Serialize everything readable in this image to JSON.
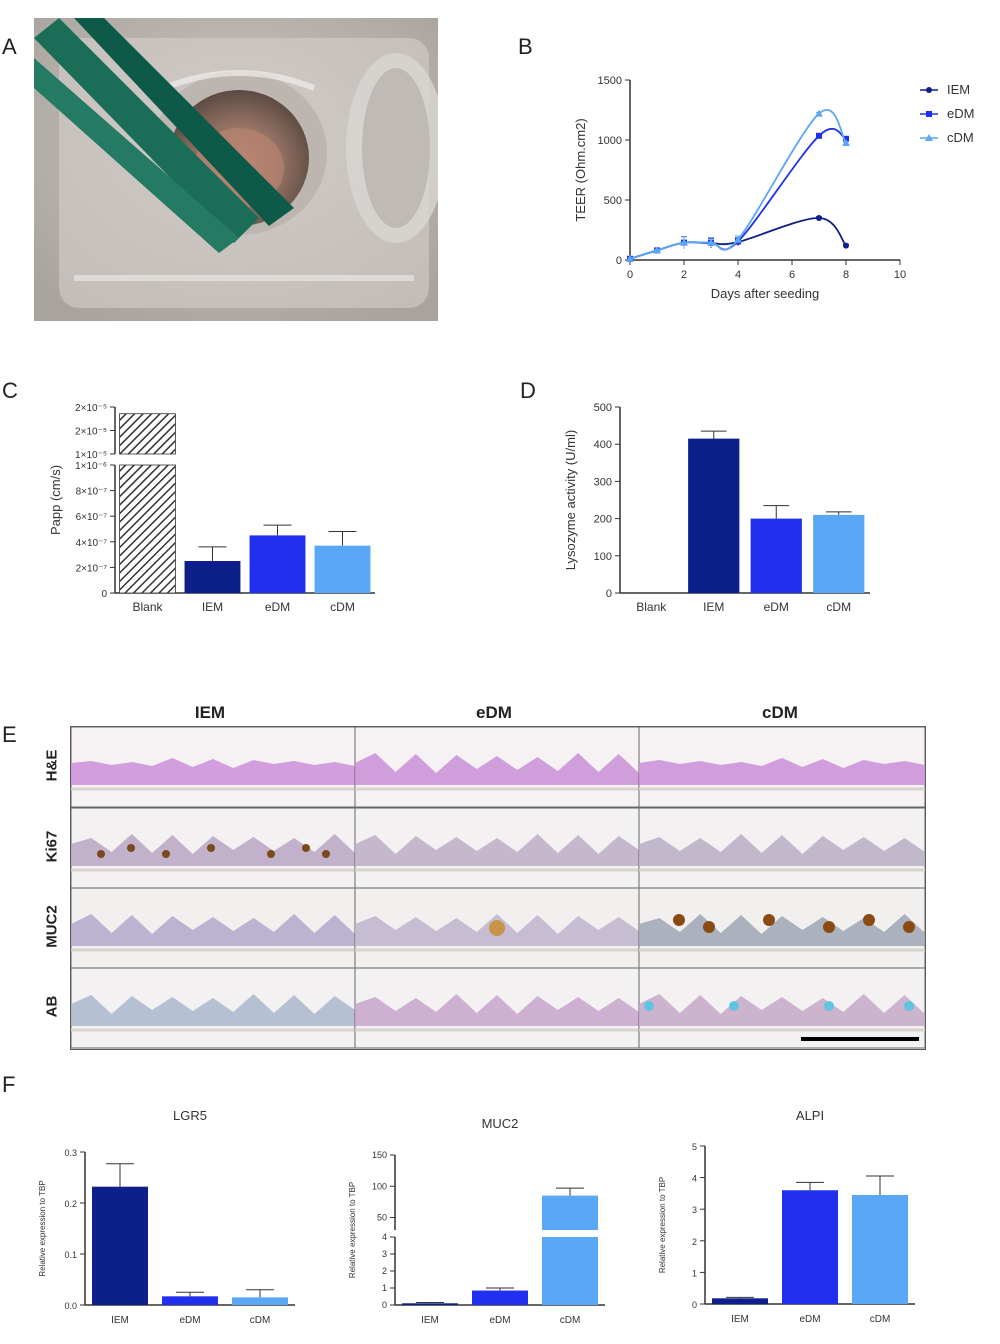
{
  "panels": {
    "a": "A",
    "b": "B",
    "c": "C",
    "d": "D",
    "e": "E",
    "f": "F"
  },
  "colors": {
    "iem": "#0c1f8a",
    "edm": "#2030ee",
    "cdm": "#5aa8f5",
    "blank_fill": "#777777"
  },
  "photo": {
    "description_icon": "transwell-photo-icon"
  },
  "histology": {
    "columns": [
      "IEM",
      "eDM",
      "cDM"
    ],
    "rows": [
      "H&E",
      "Ki67",
      "MUC2",
      "AB"
    ]
  },
  "chart_data": [
    {
      "id": "B",
      "type": "line",
      "xlabel": "Days after seeding",
      "ylabel": "TEER (Ohm.cm2)",
      "xlim": [
        0,
        10
      ],
      "ylim": [
        0,
        1500
      ],
      "xticks": [
        "0",
        "2",
        "4",
        "6",
        "8",
        "10"
      ],
      "yticks": [
        "0",
        "500",
        "1000",
        "1500"
      ],
      "series": [
        {
          "name": "IEM",
          "marker": "circle",
          "x": [
            0,
            1,
            2,
            3,
            4,
            7,
            8
          ],
          "y": [
            10,
            80,
            145,
            140,
            150,
            350,
            120
          ],
          "err": [
            0,
            10,
            50,
            40,
            30,
            10,
            10
          ]
        },
        {
          "name": "eDM",
          "marker": "square",
          "x": [
            0,
            1,
            2,
            3,
            4,
            7,
            8
          ],
          "y": [
            10,
            80,
            145,
            145,
            155,
            1035,
            1010
          ],
          "err": [
            0,
            10,
            50,
            40,
            30,
            10,
            10
          ]
        },
        {
          "name": "cDM",
          "marker": "triangle",
          "x": [
            0,
            1,
            2,
            3,
            4,
            7,
            8
          ],
          "y": [
            10,
            80,
            145,
            145,
            170,
            1220,
            975
          ],
          "err": [
            0,
            10,
            50,
            40,
            30,
            10,
            10
          ]
        }
      ]
    },
    {
      "id": "C",
      "type": "bar",
      "ylabel": "Papp  (cm/s)",
      "categories": [
        "Blank",
        "IEM",
        "eDM",
        "cDM"
      ],
      "values": [
        2.2e-05,
        2.5e-07,
        4.5e-07,
        3.7e-07
      ],
      "errors": [
        0,
        1.1e-07,
        8e-08,
        1.1e-07
      ],
      "yticks_low": [
        "0",
        "2×10⁻⁷",
        "4×10⁻⁷",
        "6×10⁻⁷",
        "8×10⁻⁷",
        "1×10⁻⁶"
      ],
      "yticks_high": [
        "1×10⁻⁵",
        "2×10⁻⁵",
        "2×10⁻⁵"
      ],
      "ylim_low": [
        0,
        1e-06
      ]
    },
    {
      "id": "D",
      "type": "bar",
      "ylabel": "Lysozyme activity (U/ml)",
      "categories": [
        "Blank",
        "IEM",
        "eDM",
        "cDM"
      ],
      "values": [
        0,
        415,
        200,
        210
      ],
      "errors": [
        0,
        20,
        35,
        8
      ],
      "ylim": [
        0,
        500
      ],
      "yticks": [
        "0",
        "100",
        "200",
        "300",
        "400",
        "500"
      ]
    },
    {
      "id": "F-LGR5",
      "type": "bar",
      "title": "LGR5",
      "ylabel": "Relative expression to TBP",
      "categories": [
        "IEM",
        "eDM",
        "cDM"
      ],
      "values": [
        0.232,
        0.017,
        0.015
      ],
      "errors": [
        0.045,
        0.008,
        0.015
      ],
      "ylim": [
        0,
        0.3
      ],
      "yticks": [
        "0.0",
        "0.1",
        "0.2",
        "0.3"
      ]
    },
    {
      "id": "F-MUC2",
      "type": "bar",
      "title": "MUC2",
      "ylabel": "Relative expression to TBP",
      "categories": [
        "IEM",
        "eDM",
        "cDM"
      ],
      "values": [
        0.1,
        0.85,
        85
      ],
      "errors": [
        0.05,
        0.15,
        12
      ],
      "yticks_low": [
        "0",
        "1",
        "2",
        "3",
        "4"
      ],
      "yticks_high": [
        "50",
        "100",
        "150"
      ]
    },
    {
      "id": "F-ALPI",
      "type": "bar",
      "title": "ALPI",
      "ylabel": "Relative expression to TBP",
      "categories": [
        "IEM",
        "eDM",
        "cDM"
      ],
      "values": [
        0.18,
        3.6,
        3.45
      ],
      "errors": [
        0.03,
        0.25,
        0.6
      ],
      "ylim": [
        0,
        5
      ],
      "yticks": [
        "0",
        "1",
        "2",
        "3",
        "4",
        "5"
      ]
    }
  ]
}
